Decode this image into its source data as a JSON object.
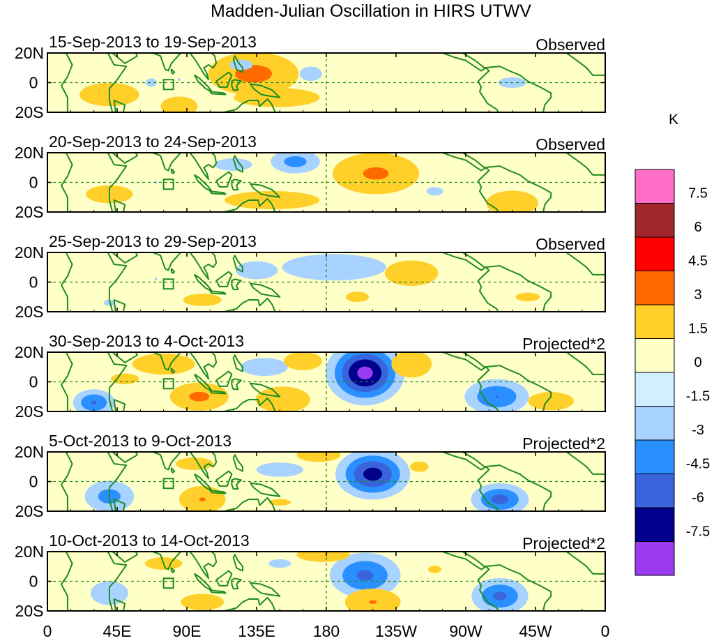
{
  "chart_data": {
    "type": "heatmap",
    "title": "Madden-Julian Oscillation in HIRS UTWV",
    "x_tick_labels": [
      "0",
      "45E",
      "90E",
      "135E",
      "180",
      "135W",
      "90W",
      "45W",
      "0"
    ],
    "x_range_deg": [
      0,
      360
    ],
    "y_tick_labels": [
      "20N",
      "0",
      "20S"
    ],
    "y_range_deg": [
      -20,
      20
    ],
    "colorbar": {
      "unit": "K",
      "labels": [
        "7.5",
        "6",
        "4.5",
        "3",
        "1.5",
        "0",
        "-1.5",
        "-3",
        "-4.5",
        "-6",
        "-7.5"
      ],
      "colors": [
        "#ff6ec7",
        "#a0282d",
        "#ff0000",
        "#ff6a00",
        "#ffd02a",
        "#ffffc8",
        "#d0f0ff",
        "#a8d2ff",
        "#2a90ff",
        "#3a64dc",
        "#00008c",
        "#9a3bf0"
      ]
    },
    "panels": [
      {
        "date_label": "15-Sep-2013 to 19-Sep-2013",
        "type_label": "Observed",
        "anomalies": [
          {
            "lon": 133,
            "lat": 6,
            "amp": 5.6,
            "slon": 18,
            "slat": 9
          },
          {
            "lon": 85,
            "lat": -16,
            "amp": 3.6,
            "slon": 9,
            "slat": 5
          },
          {
            "lon": 40,
            "lat": -8,
            "amp": 2.2,
            "slon": 22,
            "slat": 9
          },
          {
            "lon": 148,
            "lat": -10,
            "amp": 2.3,
            "slon": 30,
            "slat": 7
          },
          {
            "lon": 170,
            "lat": 6,
            "amp": -1.8,
            "slon": 12,
            "slat": 8
          },
          {
            "lon": 125,
            "lat": 12,
            "amp": -1.7,
            "slon": 15,
            "slat": 7
          },
          {
            "lon": 67,
            "lat": 0,
            "amp": -1.6,
            "slon": 10,
            "slat": 8
          },
          {
            "lon": 85,
            "lat": 2,
            "amp": -1.5,
            "slon": 8,
            "slat": 6
          },
          {
            "lon": 300,
            "lat": 0,
            "amp": -1.6,
            "slon": 25,
            "slat": 10
          }
        ]
      },
      {
        "date_label": "20-Sep-2013 to 24-Sep-2013",
        "type_label": "Observed",
        "anomalies": [
          {
            "lon": 212,
            "lat": 6,
            "amp": 5.0,
            "slon": 18,
            "slat": 9
          },
          {
            "lon": 300,
            "lat": -14,
            "amp": 4.0,
            "slon": 12,
            "slat": 6
          },
          {
            "lon": 145,
            "lat": -12,
            "amp": 2.2,
            "slon": 35,
            "slat": 7
          },
          {
            "lon": 40,
            "lat": -8,
            "amp": 2.0,
            "slon": 20,
            "slat": 8
          },
          {
            "lon": 160,
            "lat": 14,
            "amp": -3.6,
            "slon": 12,
            "slat": 6
          },
          {
            "lon": 120,
            "lat": 12,
            "amp": -1.8,
            "slon": 20,
            "slat": 7
          },
          {
            "lon": 70,
            "lat": 0,
            "amp": -1.5,
            "slon": 12,
            "slat": 8
          },
          {
            "lon": 250,
            "lat": -6,
            "amp": -1.6,
            "slon": 15,
            "slat": 8
          }
        ]
      },
      {
        "date_label": "25-Sep-2013 to 29-Sep-2013",
        "type_label": "Observed",
        "anomalies": [
          {
            "lon": 235,
            "lat": 6,
            "amp": 3.2,
            "slon": 14,
            "slat": 7
          },
          {
            "lon": 100,
            "lat": -12,
            "amp": 1.9,
            "slon": 18,
            "slat": 6
          },
          {
            "lon": 200,
            "lat": -10,
            "amp": 1.7,
            "slon": 15,
            "slat": 7
          },
          {
            "lon": 310,
            "lat": -10,
            "amp": 1.6,
            "slon": 22,
            "slat": 8
          },
          {
            "lon": 185,
            "lat": 10,
            "amp": -2.8,
            "slon": 30,
            "slat": 8
          },
          {
            "lon": 135,
            "lat": 8,
            "amp": -2.0,
            "slon": 18,
            "slat": 8
          },
          {
            "lon": 70,
            "lat": 2,
            "amp": -1.5,
            "slon": 10,
            "slat": 7
          },
          {
            "lon": 40,
            "lat": -14,
            "amp": -1.6,
            "slon": 10,
            "slat": 6
          }
        ]
      },
      {
        "date_label": "30-Sep-2013 to 4-Oct-2013",
        "type_label": "Projected*2",
        "anomalies": [
          {
            "lon": 205,
            "lat": 6,
            "amp": -8.0,
            "slon": 14,
            "slat": 12
          },
          {
            "lon": 290,
            "lat": -10,
            "amp": -4.5,
            "slon": 14,
            "slat": 8
          },
          {
            "lon": 30,
            "lat": -14,
            "amp": -4.6,
            "slon": 9,
            "slat": 6
          },
          {
            "lon": 140,
            "lat": 10,
            "amp": -2.0,
            "slon": 20,
            "slat": 8
          },
          {
            "lon": 98,
            "lat": -10,
            "amp": 5.2,
            "slon": 12,
            "slat": 6
          },
          {
            "lon": 152,
            "lat": -12,
            "amp": 4.4,
            "slon": 12,
            "slat": 6
          },
          {
            "lon": 165,
            "lat": 14,
            "amp": 3.2,
            "slon": 10,
            "slat": 5
          },
          {
            "lon": 235,
            "lat": 12,
            "amp": 3.5,
            "slon": 10,
            "slat": 7
          },
          {
            "lon": 75,
            "lat": 12,
            "amp": 2.5,
            "slon": 20,
            "slat": 7
          },
          {
            "lon": 50,
            "lat": 2,
            "amp": 1.8,
            "slon": 15,
            "slat": 6
          },
          {
            "lon": 325,
            "lat": -13,
            "amp": 3.2,
            "slon": 12,
            "slat": 5
          }
        ]
      },
      {
        "date_label": "5-Oct-2013 to 9-Oct-2013",
        "type_label": "Projected*2",
        "anomalies": [
          {
            "lon": 210,
            "lat": 5,
            "amp": -6.6,
            "slon": 14,
            "slat": 10
          },
          {
            "lon": 292,
            "lat": -12,
            "amp": -5.0,
            "slon": 12,
            "slat": 7
          },
          {
            "lon": 40,
            "lat": -10,
            "amp": -3.6,
            "slon": 12,
            "slat": 8
          },
          {
            "lon": 150,
            "lat": 8,
            "amp": -1.8,
            "slon": 25,
            "slat": 8
          },
          {
            "lon": 100,
            "lat": -12,
            "amp": 4.6,
            "slon": 10,
            "slat": 6
          },
          {
            "lon": 175,
            "lat": 18,
            "amp": 3.0,
            "slon": 12,
            "slat": 4
          },
          {
            "lon": 95,
            "lat": 12,
            "amp": 1.8,
            "slon": 20,
            "slat": 7
          },
          {
            "lon": 240,
            "lat": 10,
            "amp": 1.7,
            "slon": 12,
            "slat": 7
          },
          {
            "lon": 150,
            "lat": -14,
            "amp": 1.6,
            "slon": 20,
            "slat": 6
          }
        ]
      },
      {
        "date_label": "10-Oct-2013 to 14-Oct-2013",
        "type_label": "Projected*2",
        "anomalies": [
          {
            "lon": 205,
            "lat": 4,
            "amp": -4.8,
            "slon": 15,
            "slat": 10
          },
          {
            "lon": 292,
            "lat": -10,
            "amp": -4.8,
            "slon": 12,
            "slat": 8
          },
          {
            "lon": 40,
            "lat": -8,
            "amp": -2.5,
            "slon": 12,
            "slat": 8
          },
          {
            "lon": 150,
            "lat": 12,
            "amp": -1.6,
            "slon": 20,
            "slat": 8
          },
          {
            "lon": 210,
            "lat": -14,
            "amp": 4.6,
            "slon": 12,
            "slat": 6
          },
          {
            "lon": 178,
            "lat": 18,
            "amp": 3.2,
            "slon": 14,
            "slat": 4
          },
          {
            "lon": 100,
            "lat": -14,
            "amp": 2.3,
            "slon": 15,
            "slat": 6
          },
          {
            "lon": 75,
            "lat": 12,
            "amp": 1.8,
            "slon": 20,
            "slat": 7
          },
          {
            "lon": 250,
            "lat": 8,
            "amp": 1.6,
            "slon": 12,
            "slat": 7
          }
        ]
      }
    ]
  }
}
